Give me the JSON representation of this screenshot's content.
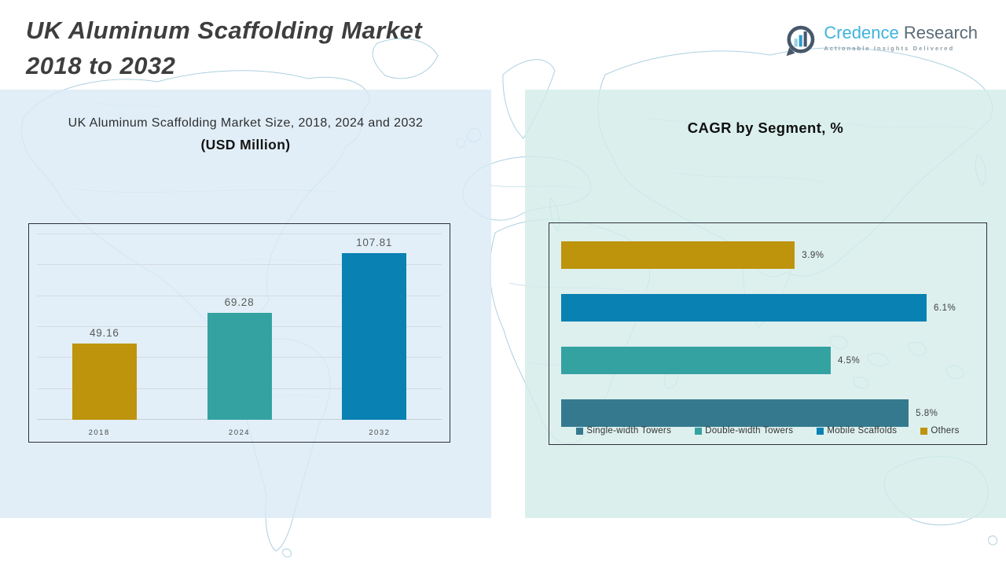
{
  "page": {
    "title_line1": "UK Aluminum Scaffolding Market",
    "title_line2": "2018 to 2032"
  },
  "logo": {
    "brand_primary": "Credence",
    "brand_secondary": "Research",
    "tagline": "Actionable Insights Delivered"
  },
  "colors": {
    "gold": "#BE940D",
    "teal": "#35A2A2",
    "blue": "#0981B2",
    "slate_blue": "#35798F",
    "panel_left_bg": "#DAEAF6",
    "panel_right_bg": "#D2ECE8",
    "map_stroke": "#A5CBDD",
    "title_text": "#3E3E3E",
    "brand_blue": "#3FB3DC",
    "brand_gray": "#5A6B77"
  },
  "chart_data": [
    {
      "type": "bar",
      "title": "UK Aluminum Scaffolding Market Size, 2018, 2024 and 2032",
      "subtitle": "(USD Million)",
      "categories": [
        "2018",
        "2024",
        "2032"
      ],
      "values": [
        49.16,
        69.28,
        107.81
      ],
      "value_labels": [
        "49.16",
        "69.28",
        "107.81"
      ],
      "bar_colors": [
        "#BE940D",
        "#35A2A2",
        "#0981B2"
      ],
      "ylim": [
        0,
        120
      ],
      "gridline_count": 7,
      "grid": true,
      "legend": false
    },
    {
      "type": "bar-horizontal",
      "title": "CAGR by Segment, %",
      "categories": [
        "Others",
        "Mobile Scaffolds",
        "Double-width Towers",
        "Single-width Towers"
      ],
      "values": [
        3.9,
        6.1,
        4.5,
        5.8
      ],
      "value_labels": [
        "3.9%",
        "6.1%",
        "4.5%",
        "5.8%"
      ],
      "bar_colors": [
        "#BE940D",
        "#0981B2",
        "#35A2A2",
        "#35798F"
      ],
      "xlim": [
        0,
        6.9
      ],
      "grid": false,
      "legend_position": "bottom",
      "legend": [
        {
          "label": "Single-width Towers",
          "color": "#35798F"
        },
        {
          "label": "Double-width Towers",
          "color": "#35A2A2"
        },
        {
          "label": "Mobile Scaffolds",
          "color": "#0981B2"
        },
        {
          "label": "Others",
          "color": "#BE940D"
        }
      ]
    }
  ]
}
